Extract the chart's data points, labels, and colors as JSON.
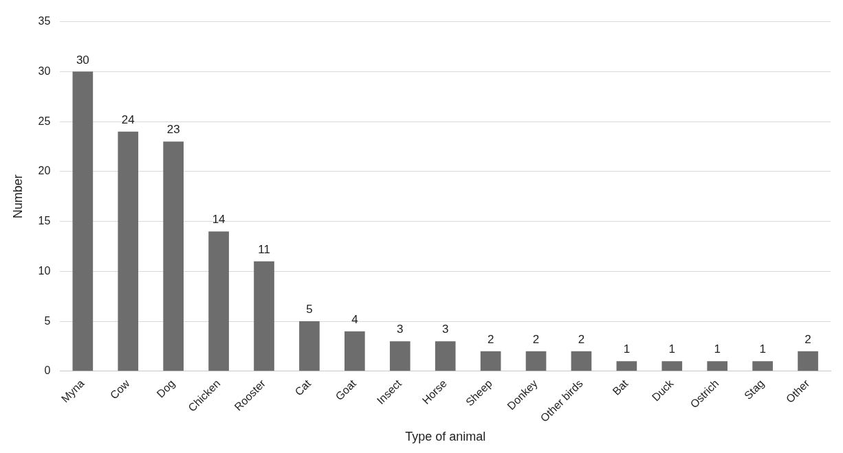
{
  "chart_data": {
    "type": "bar",
    "xlabel": "Type of animal",
    "ylabel": "Number",
    "categories": [
      "Myna",
      "Cow",
      "Dog",
      "Chicken",
      "Rooster",
      "Cat",
      "Goat",
      "Insect",
      "Horse",
      "Sheep",
      "Donkey",
      "Other birds",
      "Bat",
      "Duck",
      "Ostrich",
      "Stag",
      "Other"
    ],
    "values": [
      30,
      24,
      23,
      14,
      11,
      5,
      4,
      3,
      3,
      2,
      2,
      2,
      1,
      1,
      1,
      1,
      2
    ],
    "color": "#6d6d6d",
    "ylim": [
      0,
      35
    ],
    "yticks": [
      0,
      5,
      10,
      15,
      20,
      25,
      30,
      35
    ],
    "grid": "y",
    "data_labels": true,
    "legend": false
  }
}
